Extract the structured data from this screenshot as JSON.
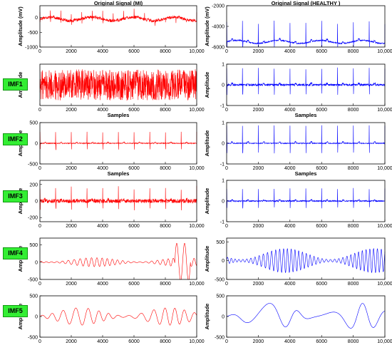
{
  "titles": {
    "left": "Original Signal (MI)",
    "right": "Original Signal (HEALTHY )"
  },
  "imf_labels": [
    "IMF1",
    "IMF2",
    "IMF3",
    "IMF4",
    "IMF5"
  ],
  "colors": {
    "left": "#ff0000",
    "right": "#0000ff",
    "label_bg": "#33ee33"
  },
  "chart_data": [
    {
      "panel": "left-original",
      "type": "line",
      "title": "Original Signal (MI)",
      "xlabel": "",
      "ylabel": "Amplitude (mV)",
      "xlim": [
        0,
        10000
      ],
      "ylim": [
        -1000,
        400
      ],
      "xticks": [
        0,
        2000,
        4000,
        6000,
        8000,
        10000
      ],
      "yticks": [
        -1000,
        -500,
        0
      ],
      "beats": 15,
      "spike": 260,
      "baseline": -50,
      "noise": 50,
      "wander": 120
    },
    {
      "panel": "left-imf1",
      "type": "line",
      "xlabel": "Samples",
      "ylabel": "Amplitude",
      "xlim": [
        0,
        10000
      ],
      "ylim": [
        -1,
        1
      ],
      "xticks": [
        0,
        2000,
        4000,
        6000,
        8000,
        10000
      ],
      "yticks": [],
      "beats": 0,
      "spike": 0,
      "baseline": 0,
      "noise": 0.75,
      "wander": 0
    },
    {
      "panel": "left-imf2",
      "type": "line",
      "xlabel": "Samples",
      "ylabel": "Amplitude",
      "xlim": [
        0,
        10000
      ],
      "ylim": [
        -500,
        500
      ],
      "xticks": [
        0,
        2000,
        4000,
        6000,
        8000,
        10000
      ],
      "yticks": [
        -500,
        0,
        500
      ],
      "beats": 10,
      "spike": 270,
      "baseline": 0,
      "noise": 10,
      "wander": 0
    },
    {
      "panel": "left-imf3",
      "type": "line",
      "xlabel": "",
      "ylabel": "Amplitude",
      "xlim": [
        0,
        10000
      ],
      "ylim": [
        -250,
        250
      ],
      "xticks": [
        0,
        2000,
        4000,
        6000,
        8000,
        10000
      ],
      "yticks": [
        -200,
        0,
        200
      ],
      "beats": 10,
      "spike": 160,
      "baseline": 0,
      "noise": 25,
      "wander": 0
    },
    {
      "panel": "left-imf4",
      "type": "line",
      "xlabel": "",
      "ylabel": "Amplitude",
      "xlim": [
        0,
        10000
      ],
      "ylim": [
        -500,
        700
      ],
      "xticks": [
        0,
        2000,
        4000,
        6000,
        8000,
        10000
      ],
      "yticks": [
        -500,
        0,
        500
      ],
      "osc_amp": 130,
      "osc_period": 350,
      "burst": 550
    },
    {
      "panel": "left-imf5",
      "type": "line",
      "xlabel": "",
      "ylabel": "Amplitude",
      "xlim": [
        0,
        10000
      ],
      "ylim": [
        -500,
        500
      ],
      "xticks": [
        0,
        2000,
        4000,
        6000,
        8000,
        10000
      ],
      "yticks": [
        -500,
        0,
        500
      ],
      "osc_amp": 210,
      "osc_period": 700,
      "burst": 0
    },
    {
      "panel": "right-original",
      "type": "line",
      "title": "Original Signal (HEALTHY )",
      "xlabel": "",
      "ylabel": "Amplitude (mV)",
      "xlim": [
        0,
        10000
      ],
      "ylim": [
        -6000,
        -2000
      ],
      "xticks": [
        0,
        2000,
        4000,
        6000,
        8000,
        10000
      ],
      "yticks": [
        -6000,
        -4000,
        -2000
      ],
      "beats": 10,
      "spike": 1900,
      "baseline": -5500,
      "noise": 60,
      "wander": 300
    },
    {
      "panel": "right-imf1",
      "type": "line",
      "xlabel": "Samples",
      "ylabel": "Amplitude",
      "xlim": [
        0,
        10000
      ],
      "ylim": [
        -1,
        1
      ],
      "xticks": [
        0,
        2000,
        4000,
        6000,
        8000,
        10000
      ],
      "yticks": [
        -1,
        0,
        1
      ],
      "beats": 10,
      "spike": 0.8,
      "baseline": 0,
      "noise": 0.05,
      "wander": 0
    },
    {
      "panel": "right-imf2",
      "type": "line",
      "xlabel": "Samples",
      "ylabel": "Amplitude",
      "xlim": [
        0,
        10000
      ],
      "ylim": [
        -1,
        1
      ],
      "xticks": [
        0,
        2000,
        4000,
        6000,
        8000,
        10000
      ],
      "yticks": [
        -1,
        0,
        1
      ],
      "beats": 10,
      "spike": 0.85,
      "baseline": 0,
      "noise": 0.02,
      "wander": 0
    },
    {
      "panel": "right-imf3",
      "type": "line",
      "xlabel": "",
      "ylabel": "Amplitude",
      "xlim": [
        0,
        10000
      ],
      "ylim": [
        -1,
        1
      ],
      "xticks": [
        0,
        2000,
        4000,
        6000,
        8000,
        10000
      ],
      "yticks": [
        -1,
        0,
        1
      ],
      "beats": 10,
      "spike": 0.6,
      "baseline": 0,
      "noise": 0.03,
      "wander": 0
    },
    {
      "panel": "right-imf4",
      "type": "line",
      "xlabel": "",
      "ylabel": "Amplitude",
      "xlim": [
        0,
        10000
      ],
      "ylim": [
        -500,
        600
      ],
      "xticks": [
        0,
        2000,
        4000,
        6000,
        8000,
        10000
      ],
      "yticks": [
        -500,
        0,
        500
      ],
      "osc_amp": 320,
      "osc_period": 250,
      "burst": 0
    },
    {
      "panel": "right-imf5",
      "type": "line",
      "xlabel": "",
      "ylabel": "Amplitude",
      "xlim": [
        0,
        10000
      ],
      "ylim": [
        -500,
        500
      ],
      "xticks": [
        0,
        2000,
        4000,
        6000,
        8000,
        10000
      ],
      "yticks": [
        -500,
        0,
        500
      ],
      "osc_amp": 320,
      "osc_period": 2000,
      "burst": 0
    }
  ]
}
